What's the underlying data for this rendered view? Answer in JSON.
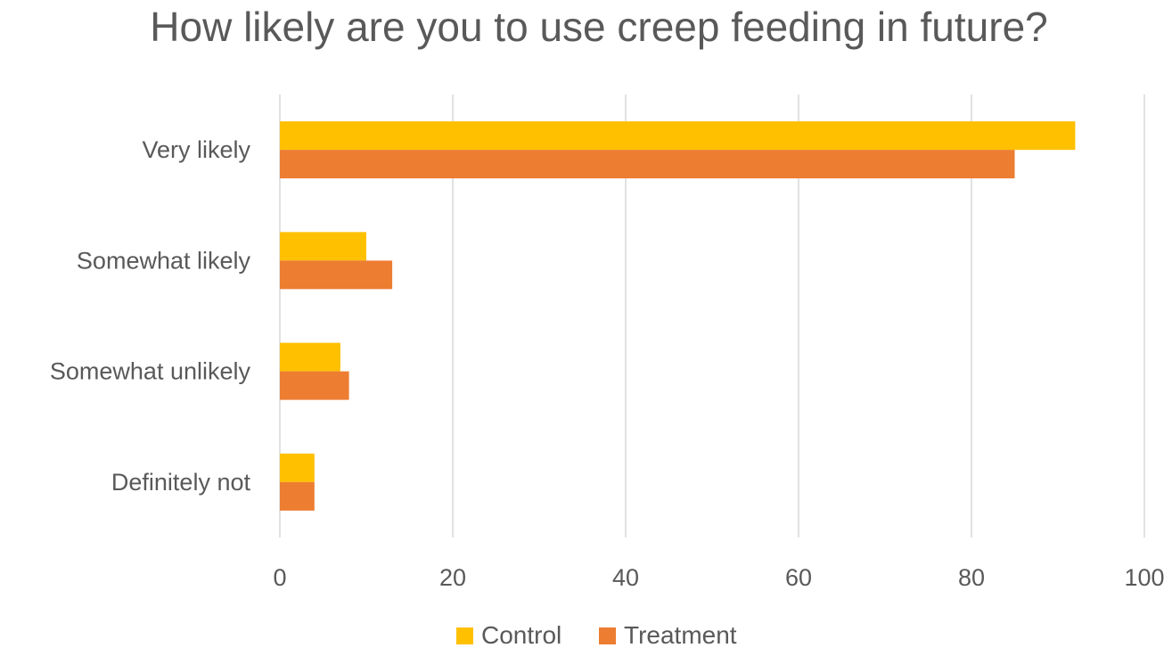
{
  "chart_data": {
    "type": "bar",
    "orientation": "horizontal",
    "title": "How likely are you to use creep feeding in future?",
    "categories": [
      "Very likely",
      "Somewhat likely",
      "Somewhat unlikely",
      "Definitely not"
    ],
    "series": [
      {
        "name": "Control",
        "color": "#FFC000",
        "values": [
          92,
          10,
          7,
          4
        ]
      },
      {
        "name": "Treatment",
        "color": "#ED7D31",
        "values": [
          85,
          13,
          8,
          4
        ]
      }
    ],
    "xlim": [
      0,
      100
    ],
    "xticks": [
      0,
      20,
      40,
      60,
      80,
      100
    ],
    "xtick_labels": [
      "0",
      "20",
      "40",
      "60",
      "80",
      "100"
    ],
    "grid": true,
    "legend_position": "bottom"
  }
}
